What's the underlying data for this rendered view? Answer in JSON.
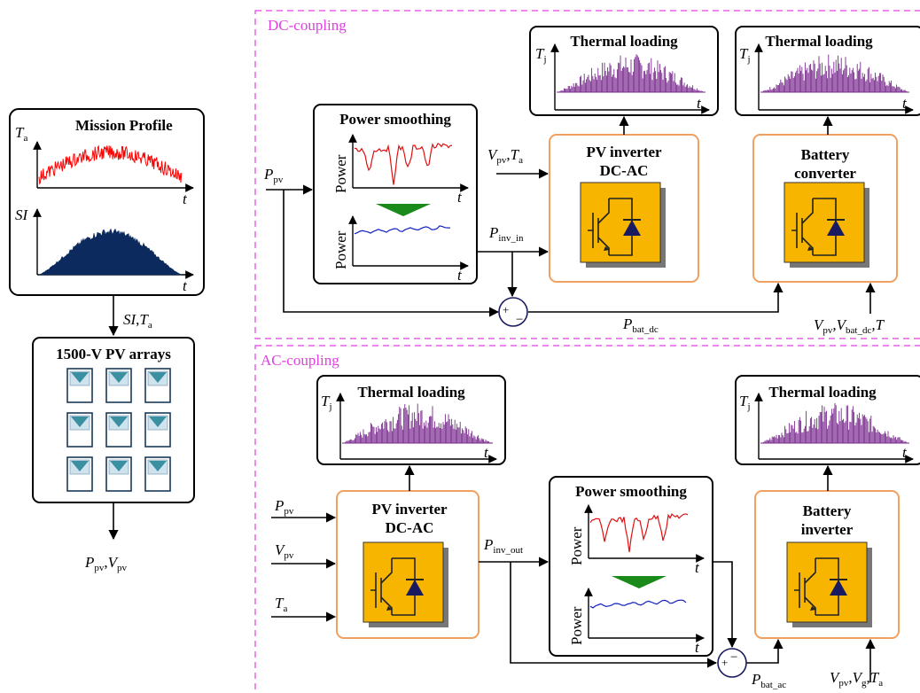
{
  "mission_profile": {
    "title": "Mission Profile",
    "ta_symbol": "T",
    "ta_sub": "a",
    "si_symbol": "SI",
    "time_symbol": "t"
  },
  "mp_output": {
    "si": "SI",
    "comma": ",",
    "t": "T",
    "t_sub": "a"
  },
  "pv_arrays": {
    "title": "1500-V PV arrays",
    "panel_rows": 3,
    "panel_cols": 3
  },
  "pv_output": {
    "p": "P",
    "p_sub": "pv",
    "comma": ",",
    "v": "V",
    "v_sub": "pv"
  },
  "dc_section": {
    "label": "DC-coupling",
    "thermal_1_title": "Thermal loading",
    "thermal_2_title": "Thermal loading",
    "tj": "T",
    "tj_sub": "j",
    "time_symbol": "t",
    "smoothing_title": "Power smoothing",
    "power_axis": "Power",
    "pv_inverter_line1": "PV inverter",
    "pv_inverter_line2": "DC-AC",
    "battery_line1": "Battery",
    "battery_line2": "converter",
    "ppv": "P",
    "ppv_sub": "pv",
    "vpv_ta_v": "V",
    "vpv_ta_vsub": "pv",
    "vpv_ta_comma": ",",
    "vpv_ta_t": "T",
    "vpv_ta_tsub": "a",
    "pinv_in": "P",
    "pinv_in_sub": "inv_in",
    "pbat_dc": "P",
    "pbat_dc_sub": "bat_dc",
    "bottom_right": "V",
    "bottom_right_sub1": "pv",
    "bottom_right_mid": ",V",
    "bottom_right_sub2": "bat_dc",
    "bottom_right_end": ",T"
  },
  "ac_section": {
    "label": "AC-coupling",
    "thermal_1_title": "Thermal loading",
    "thermal_2_title": "Thermal loading",
    "tj": "T",
    "tj_sub": "j",
    "time_symbol": "t",
    "smoothing_title": "Power smoothing",
    "power_axis": "Power",
    "pv_inverter_line1": "PV inverter",
    "pv_inverter_line2": "DC-AC",
    "battery_line1": "Battery",
    "battery_line2": "inverter",
    "in_ppv": "P",
    "in_ppv_sub": "pv",
    "in_vpv": "V",
    "in_vpv_sub": "pv",
    "in_ta": "T",
    "in_ta_sub": "a",
    "pinv_out": "P",
    "pinv_out_sub": "inv_out",
    "pbat_ac": "P",
    "pbat_ac_sub": "bat_ac",
    "br_v": "V",
    "br_vsub": "pv",
    "br_comma1": ",",
    "br_vg": "V",
    "br_vg_sub": "g",
    "br_comma2": ",",
    "br_t": "T",
    "br_tsub": "a"
  },
  "summing_signs": {
    "plus": "+",
    "minus": "−"
  },
  "colors": {
    "boundary": "#e040e0",
    "thermal": "#7a2a8e",
    "ambient": "#ff0000",
    "irradiance": "#0d2a5e",
    "block_border": "#f0a060",
    "igbt_fill": "#f7b500",
    "igbt_shadow": "#777777",
    "smooth_raw": "#e01010",
    "smooth_out": "#1020c0",
    "triangle": "#1a8a1a",
    "panel": "#3a8fa0"
  }
}
